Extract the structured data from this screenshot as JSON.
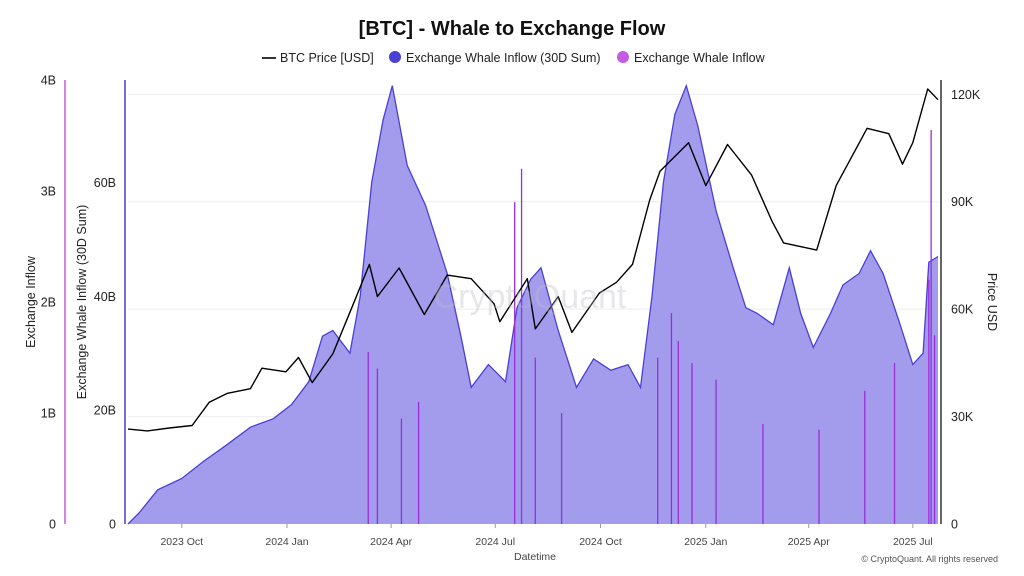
{
  "chart_data": {
    "type": "area",
    "title": "[BTC] - Whale to Exchange Flow",
    "legend": {
      "placement": "top-center",
      "items": [
        {
          "label": "BTC Price [USD]",
          "color": "#000000",
          "marker": "line"
        },
        {
          "label": "Exchange Whale Inflow (30D Sum)",
          "color": "#4a3fd6",
          "marker": "dot"
        },
        {
          "label": "Exchange Whale Inflow",
          "color": "#b44de0",
          "marker": "dot"
        }
      ]
    },
    "x_axis": {
      "label": "Datetime",
      "ticks": [
        "2023 Oct",
        "2024 Jan",
        "2024 Apr",
        "2024 Jul",
        "2024 Oct",
        "2025 Jan",
        "2025 Apr",
        "2025 Jul"
      ],
      "range": [
        "2023-08-15",
        "2025-07-23"
      ]
    },
    "y_axes": {
      "inflow": {
        "label": "Exchange Inflow",
        "ticks": [
          "0",
          "1B",
          "2B",
          "3B",
          "4B"
        ],
        "range": [
          0,
          4000000000
        ]
      },
      "sum30d": {
        "label": "Exchange Whale Inflow (30D Sum)",
        "ticks": [
          "0",
          "20B",
          "40B",
          "60B"
        ],
        "range": [
          0,
          78000000000
        ]
      },
      "price": {
        "label": "Price USD",
        "ticks": [
          "0",
          "30K",
          "60K",
          "90K",
          "120K"
        ],
        "range": [
          0,
          124000
        ]
      }
    },
    "grid": true,
    "watermark": "CryptoQuant",
    "copyright": "© CryptoQuant. All rights reserved",
    "series": [
      {
        "name": "BTC Price [USD]",
        "color": "#000000",
        "axis": "price",
        "points": [
          [
            "2023-08-15",
            26500
          ],
          [
            "2023-09-01",
            26000
          ],
          [
            "2023-09-20",
            26800
          ],
          [
            "2023-10-10",
            27500
          ],
          [
            "2023-10-25",
            34000
          ],
          [
            "2023-11-10",
            36500
          ],
          [
            "2023-11-30",
            37800
          ],
          [
            "2023-12-10",
            43500
          ],
          [
            "2023-12-31",
            42500
          ],
          [
            "2024-01-11",
            46500
          ],
          [
            "2024-01-23",
            39500
          ],
          [
            "2024-02-10",
            47500
          ],
          [
            "2024-02-28",
            61500
          ],
          [
            "2024-03-13",
            72500
          ],
          [
            "2024-03-20",
            63500
          ],
          [
            "2024-04-08",
            71500
          ],
          [
            "2024-04-30",
            58500
          ],
          [
            "2024-05-20",
            69500
          ],
          [
            "2024-06-10",
            68500
          ],
          [
            "2024-06-30",
            61500
          ],
          [
            "2024-07-05",
            56500
          ],
          [
            "2024-07-29",
            68500
          ],
          [
            "2024-08-05",
            54500
          ],
          [
            "2024-08-25",
            63500
          ],
          [
            "2024-09-06",
            53500
          ],
          [
            "2024-09-30",
            64500
          ],
          [
            "2024-10-15",
            67500
          ],
          [
            "2024-10-29",
            72500
          ],
          [
            "2024-11-13",
            90500
          ],
          [
            "2024-11-22",
            98500
          ],
          [
            "2024-12-17",
            106500
          ],
          [
            "2025-01-01",
            94500
          ],
          [
            "2025-01-20",
            106000
          ],
          [
            "2025-02-10",
            97500
          ],
          [
            "2025-02-28",
            84500
          ],
          [
            "2025-03-10",
            78500
          ],
          [
            "2025-04-08",
            76500
          ],
          [
            "2025-04-25",
            94500
          ],
          [
            "2025-05-22",
            110500
          ],
          [
            "2025-06-10",
            109000
          ],
          [
            "2025-06-22",
            100500
          ],
          [
            "2025-07-01",
            106500
          ],
          [
            "2025-07-14",
            121500
          ],
          [
            "2025-07-23",
            118500
          ]
        ]
      },
      {
        "name": "Exchange Whale Inflow (30D Sum)",
        "color": "#4a3fd6",
        "fill": "#9e97ec",
        "axis": "sum30d",
        "points": [
          [
            "2023-08-15",
            0
          ],
          [
            "2023-08-25",
            2000000000
          ],
          [
            "2023-09-10",
            6000000000
          ],
          [
            "2023-10-01",
            8000000000
          ],
          [
            "2023-10-20",
            11000000000
          ],
          [
            "2023-11-10",
            14000000000
          ],
          [
            "2023-11-30",
            17000000000
          ],
          [
            "2023-12-20",
            18500000000
          ],
          [
            "2024-01-05",
            21000000000
          ],
          [
            "2024-01-20",
            25000000000
          ],
          [
            "2024-02-01",
            33000000000
          ],
          [
            "2024-02-10",
            34000000000
          ],
          [
            "2024-02-25",
            30000000000
          ],
          [
            "2024-03-05",
            40000000000
          ],
          [
            "2024-03-15",
            60000000000
          ],
          [
            "2024-03-25",
            71000000000
          ],
          [
            "2024-04-02",
            77000000000
          ],
          [
            "2024-04-15",
            63000000000
          ],
          [
            "2024-05-01",
            56000000000
          ],
          [
            "2024-05-20",
            44000000000
          ],
          [
            "2024-06-01",
            33000000000
          ],
          [
            "2024-06-10",
            24000000000
          ],
          [
            "2024-06-25",
            28000000000
          ],
          [
            "2024-07-10",
            25000000000
          ],
          [
            "2024-07-20",
            38000000000
          ],
          [
            "2024-08-01",
            43000000000
          ],
          [
            "2024-08-10",
            45000000000
          ],
          [
            "2024-08-25",
            34000000000
          ],
          [
            "2024-09-10",
            24000000000
          ],
          [
            "2024-09-25",
            29000000000
          ],
          [
            "2024-10-10",
            27000000000
          ],
          [
            "2024-10-25",
            28000000000
          ],
          [
            "2024-11-05",
            24000000000
          ],
          [
            "2024-11-15",
            40000000000
          ],
          [
            "2024-11-25",
            60000000000
          ],
          [
            "2024-12-05",
            72000000000
          ],
          [
            "2024-12-15",
            77000000000
          ],
          [
            "2024-12-25",
            70000000000
          ],
          [
            "2025-01-10",
            55000000000
          ],
          [
            "2025-01-25",
            45000000000
          ],
          [
            "2025-02-05",
            38000000000
          ],
          [
            "2025-02-15",
            37000000000
          ],
          [
            "2025-03-01",
            35000000000
          ],
          [
            "2025-03-15",
            45000000000
          ],
          [
            "2025-03-25",
            37000000000
          ],
          [
            "2025-04-05",
            31000000000
          ],
          [
            "2025-04-20",
            37000000000
          ],
          [
            "2025-05-01",
            42000000000
          ],
          [
            "2025-05-15",
            44000000000
          ],
          [
            "2025-05-25",
            48000000000
          ],
          [
            "2025-06-05",
            44000000000
          ],
          [
            "2025-06-20",
            35000000000
          ],
          [
            "2025-07-01",
            28000000000
          ],
          [
            "2025-07-10",
            30000000000
          ],
          [
            "2025-07-15",
            46000000000
          ],
          [
            "2025-07-23",
            47000000000
          ]
        ]
      },
      {
        "name": "Exchange Whale Inflow",
        "color": "#9b2cdc",
        "axis": "inflow",
        "points": [
          [
            "2024-03-12",
            1550000000
          ],
          [
            "2024-03-20",
            1400000000
          ],
          [
            "2024-04-10",
            950000000
          ],
          [
            "2024-04-25",
            1100000000
          ],
          [
            "2024-07-18",
            2900000000
          ],
          [
            "2024-07-24",
            3200000000
          ],
          [
            "2024-08-05",
            1500000000
          ],
          [
            "2024-08-28",
            1000000000
          ],
          [
            "2024-11-20",
            1500000000
          ],
          [
            "2024-12-02",
            1900000000
          ],
          [
            "2024-12-08",
            1650000000
          ],
          [
            "2024-12-20",
            1450000000
          ],
          [
            "2025-01-10",
            1300000000
          ],
          [
            "2025-02-20",
            900000000
          ],
          [
            "2025-04-10",
            850000000
          ],
          [
            "2025-05-20",
            1200000000
          ],
          [
            "2025-06-15",
            1450000000
          ],
          [
            "2025-07-15",
            2200000000
          ],
          [
            "2025-07-17",
            3550000000
          ],
          [
            "2025-07-20",
            1700000000
          ]
        ]
      }
    ]
  }
}
